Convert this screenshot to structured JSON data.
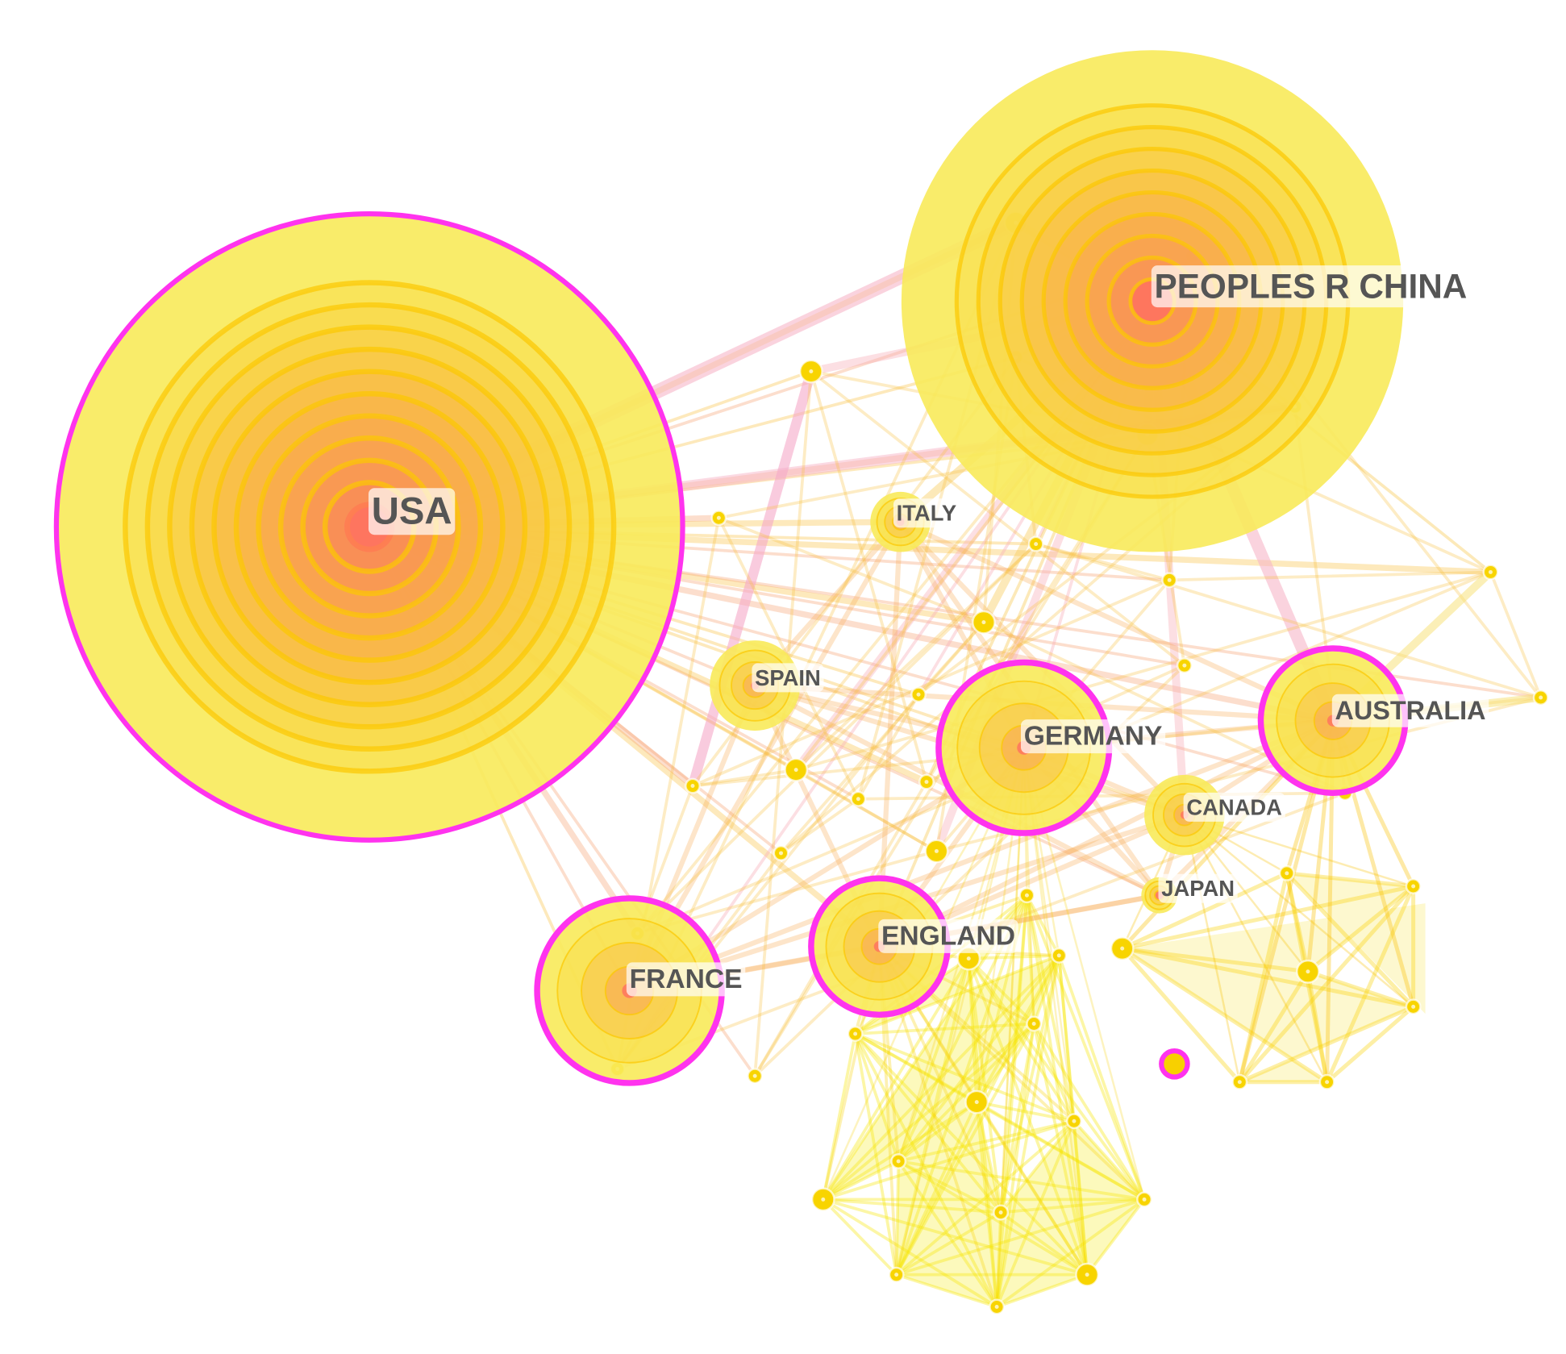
{
  "nodes": [
    {
      "label": "USA"
    },
    {
      "label": "PEOPLES R CHINA"
    },
    {
      "label": "ITALY"
    },
    {
      "label": "SPAIN"
    },
    {
      "label": "GERMANY"
    },
    {
      "label": "AUSTRALIA"
    },
    {
      "label": "CANADA"
    },
    {
      "label": "JAPAN"
    },
    {
      "label": "ENGLAND"
    },
    {
      "label": "FRANCE"
    }
  ]
}
